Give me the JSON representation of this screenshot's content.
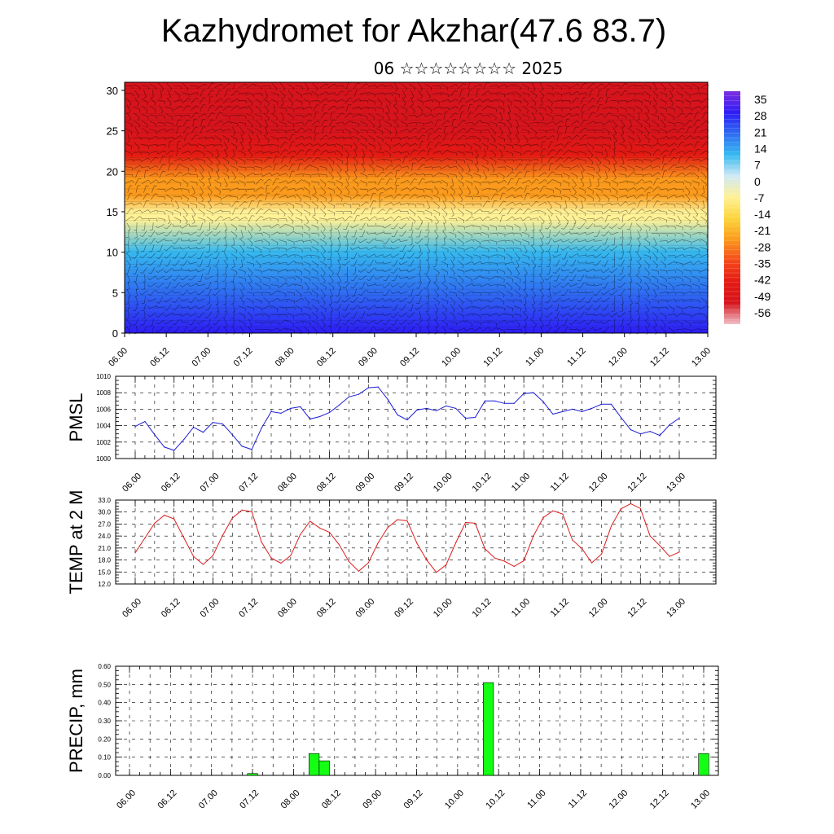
{
  "page": {
    "title": "Kazhydromet for Akzhar(47.6 83.7)",
    "subtitle": "06 ☆☆☆☆☆☆☆☆ 2025"
  },
  "time_ticks": [
    "06.00",
    "06.12",
    "07.00",
    "07.12",
    "08.00",
    "08.12",
    "09.00",
    "09.12",
    "10.00",
    "10.12",
    "11.00",
    "11.12",
    "12.00",
    "12.12",
    "13.00"
  ],
  "chart_data": [
    {
      "type": "heatmap",
      "title": "",
      "xlabel": "",
      "ylabel": "",
      "x_ticks": [
        "06.00",
        "06.12",
        "07.00",
        "07.12",
        "08.00",
        "08.12",
        "09.00",
        "09.12",
        "10.00",
        "10.12",
        "11.00",
        "11.12",
        "12.00",
        "12.12",
        "13.00"
      ],
      "y_ticks": [
        0,
        5,
        10,
        15,
        20,
        25,
        30
      ],
      "ylim": [
        0,
        31
      ],
      "colorbar": {
        "labels": [
          "35",
          "28",
          "21",
          "14",
          "7",
          "0",
          "-7",
          "-14",
          "-21",
          "-28",
          "-35",
          "-42",
          "-49",
          "-56"
        ],
        "range": [
          -60,
          38
        ],
        "colors": [
          "#7f2fe0",
          "#2e1cf5",
          "#2f6cf2",
          "#36b9f0",
          "#cfe9f5",
          "#fff196",
          "#fcd53a",
          "#fb9a1c",
          "#f6491b",
          "#e41a14",
          "#d7141c",
          "#f0c0c8"
        ]
      },
      "profile": [
        {
          "level": 0,
          "temp": 26
        },
        {
          "level": 5,
          "temp": 22
        },
        {
          "level": 10,
          "temp": 10
        },
        {
          "level": 14,
          "temp": -6
        },
        {
          "level": 15,
          "temp": -10
        },
        {
          "level": 17,
          "temp": -20
        },
        {
          "level": 19,
          "temp": -28
        },
        {
          "level": 22,
          "temp": -38
        },
        {
          "level": 25,
          "temp": -52
        },
        {
          "level": 27,
          "temp": -55
        },
        {
          "level": 31,
          "temp": -50
        }
      ],
      "overlay": "wind barbs"
    },
    {
      "type": "line",
      "ylabel": "PMSL",
      "ylim": [
        1000,
        1010
      ],
      "y_ticks": [
        1000,
        1002,
        1004,
        1006,
        1008,
        1010
      ],
      "color": "#1c1cd6",
      "values": [
        1003.9,
        1004.5,
        1002.9,
        1001.4,
        1001.0,
        1002.3,
        1003.8,
        1003.2,
        1004.4,
        1004.2,
        1002.9,
        1001.5,
        1001.1,
        1003.7,
        1005.7,
        1005.5,
        1006.1,
        1006.3,
        1004.8,
        1005.1,
        1005.6,
        1006.5,
        1007.5,
        1007.8,
        1008.6,
        1008.7,
        1007.2,
        1005.3,
        1004.7,
        1005.9,
        1006.1,
        1005.8,
        1006.4,
        1006.1,
        1004.9,
        1005.0,
        1007.0,
        1007.0,
        1006.7,
        1006.7,
        1007.9,
        1008.0,
        1006.9,
        1005.4,
        1005.7,
        1006.0,
        1005.7,
        1006.1,
        1006.6,
        1006.6,
        1005.0,
        1003.5,
        1003.0,
        1003.3,
        1002.8,
        1004.1,
        1004.9
      ]
    },
    {
      "type": "line",
      "ylabel": "TEMP at 2 M",
      "ylim": [
        12,
        33
      ],
      "y_ticks": [
        "12.0",
        "15.0",
        "18.0",
        "21.0",
        "24.0",
        "27.0",
        "30.0",
        "33.0"
      ],
      "color": "#dd1c1c",
      "values": [
        19.8,
        23.5,
        27.2,
        29.2,
        28.3,
        23.6,
        18.9,
        16.9,
        19.1,
        24.2,
        28.5,
        30.5,
        30.1,
        22.5,
        18.5,
        17.2,
        19.1,
        24.4,
        27.7,
        26.0,
        24.9,
        21.8,
        17.6,
        15.2,
        17.3,
        22.3,
        26.1,
        28.1,
        27.8,
        22.2,
        18.0,
        14.9,
        16.8,
        22.3,
        27.4,
        27.2,
        20.8,
        18.5,
        17.7,
        16.4,
        17.8,
        24.1,
        28.6,
        30.3,
        29.5,
        23.0,
        20.8,
        17.3,
        19.5,
        26.5,
        30.8,
        32.1,
        30.9,
        24.0,
        21.6,
        18.9,
        20.0
      ]
    },
    {
      "type": "bar",
      "ylabel": "PRECIP, mm",
      "ylim": [
        0,
        0.6
      ],
      "y_ticks": [
        "0.00",
        "0.10",
        "0.20",
        "0.30",
        "0.40",
        "0.50",
        "0.60"
      ],
      "color": "#14ff14",
      "bars": [
        {
          "time": "07.12",
          "value": 0.01
        },
        {
          "time": "08.06",
          "value": 0.12
        },
        {
          "time": "08.09",
          "value": 0.08
        },
        {
          "time": "10.09",
          "value": 0.51
        },
        {
          "time": "13.00",
          "value": 0.12
        }
      ]
    }
  ]
}
